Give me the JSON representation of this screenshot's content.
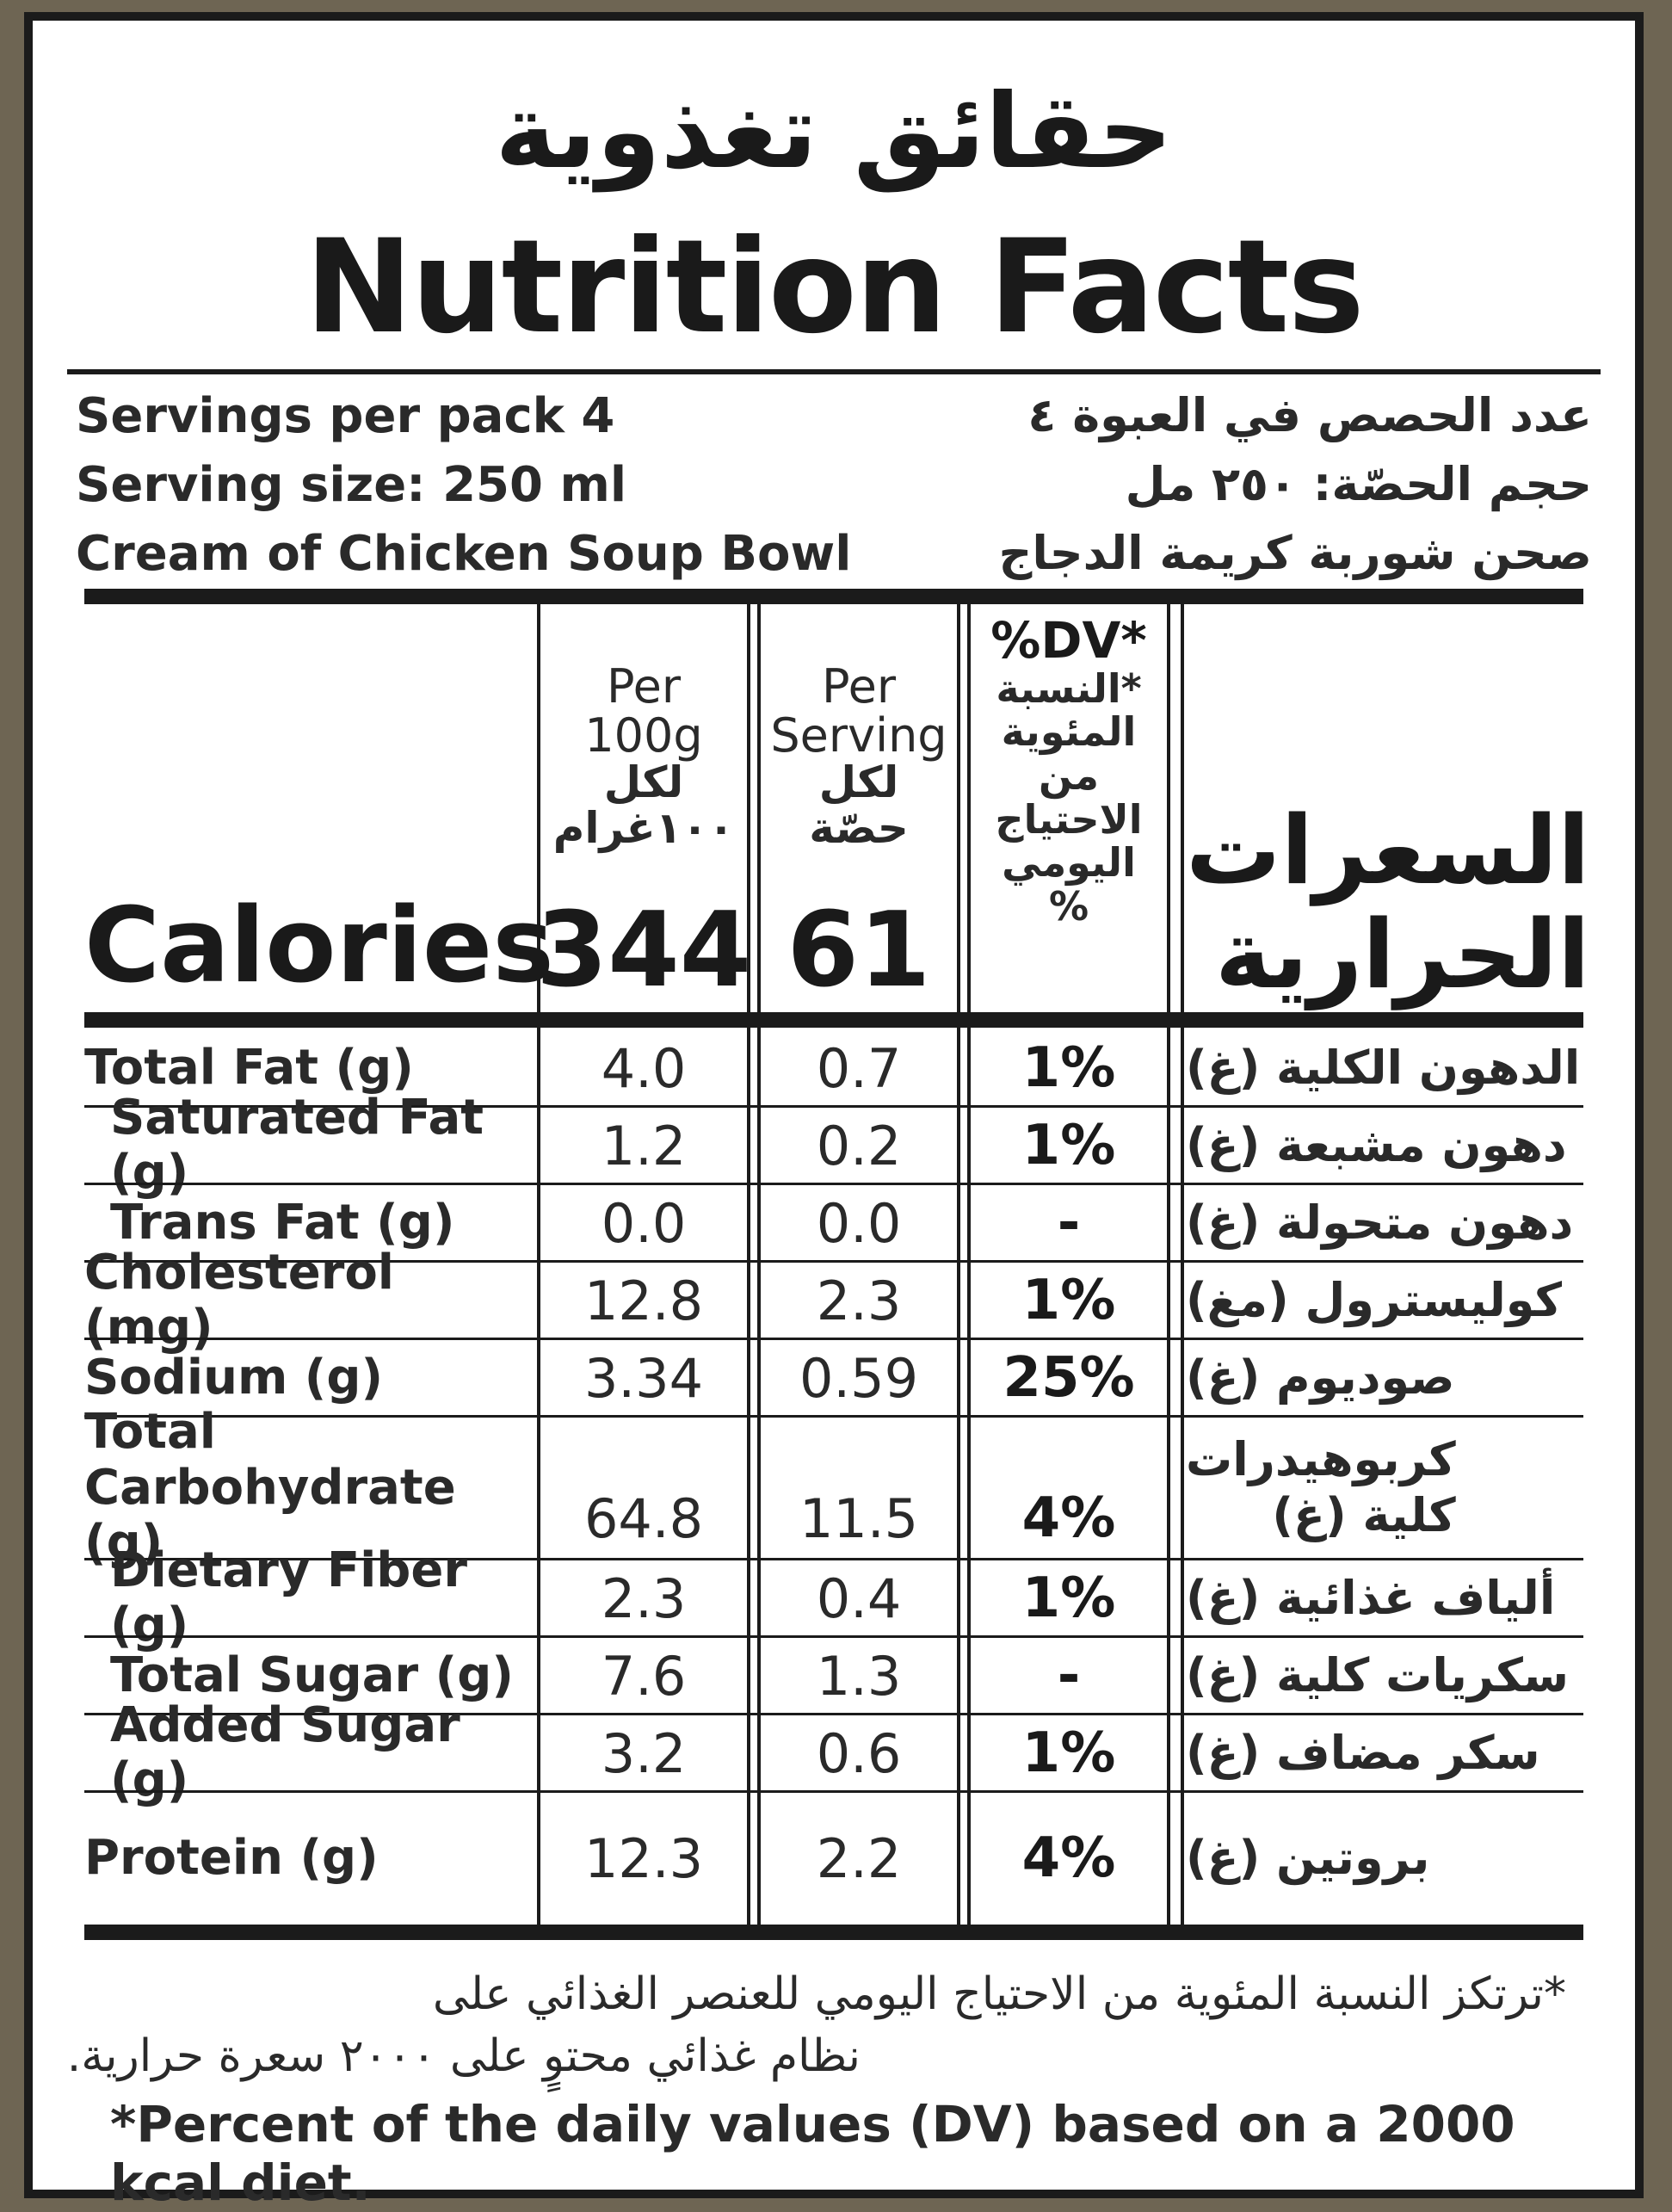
{
  "title": {
    "arabic": "حقائق تغذوية",
    "english": "Nutrition Facts"
  },
  "info": {
    "servings_en": "Servings per pack 4",
    "servings_ar": "عدد الحصص في العبوة ٤",
    "size_en": "Serving size: 250 ml",
    "size_ar": "حجم الحصّة: ٢٥٠ مل",
    "product_en": "Cream of Chicken Soup Bowl",
    "product_ar": "صحن شوربة كريمة الدجاج"
  },
  "headers": {
    "per100_en": "Per\n100g",
    "per100_ar": "لكل\n١٠٠غرام",
    "serving_en": "Per\nServing",
    "serving_ar": "لكل\nحصّة",
    "dv_en": "%DV*",
    "dv_ar": "*النسبة\nالمئوية\nمن\nالاحتياج\nاليومي\n%"
  },
  "calories": {
    "label_en": "Calories",
    "label_ar": "السعرات\nالحرارية",
    "per100": "344",
    "per_serving": "61"
  },
  "nutrients": [
    {
      "en": "Total Fat (g)",
      "ar": "الدهون الكلية (غ)",
      "per100": "4.0",
      "serving": "0.7",
      "dv": "1%"
    },
    {
      "en": "Saturated Fat (g)",
      "ar": "دهون مشبعة (غ)",
      "per100": "1.2",
      "serving": "0.2",
      "dv": "1%"
    },
    {
      "en": "Trans Fat (g)",
      "ar": "دهون متحولة (غ)",
      "per100": "0.0",
      "serving": "0.0",
      "dv": "-"
    },
    {
      "en": "Cholesterol (mg)",
      "ar": "كوليسترول (مغ)",
      "per100": "12.8",
      "serving": "2.3",
      "dv": "1%"
    },
    {
      "en": "Sodium (g)",
      "ar": "صوديوم (غ)",
      "per100": "3.34",
      "serving": "0.59",
      "dv": "25%"
    },
    {
      "en": "Total\nCarbohydrate (g)",
      "ar": "كربوهيدرات\nكلية (غ)",
      "per100": "64.8",
      "serving": "11.5",
      "dv": "4%"
    },
    {
      "en": "Dietary Fiber (g)",
      "ar": "ألياف غذائية (غ)",
      "per100": "2.3",
      "serving": "0.4",
      "dv": "1%"
    },
    {
      "en": "Total Sugar (g)",
      "ar": "سكريات كلية (غ)",
      "per100": "7.6",
      "serving": "1.3",
      "dv": "-"
    },
    {
      "en": "Added Sugar (g)",
      "ar": "سكر مضاف (غ)",
      "per100": "3.2",
      "serving": "0.6",
      "dv": "1%"
    },
    {
      "en": "Protein (g)",
      "ar": "بروتين (غ)",
      "per100": "12.3",
      "serving": "2.2",
      "dv": "4%"
    }
  ],
  "footnote": {
    "ar_line1": "*ترتكز النسبة المئوية من الاحتياج اليومي للعنصر الغذائي على",
    "ar_line2": "نظام غذائي محتوٍ على ٢٠٠٠ سعرة حرارية.",
    "en": "*Percent of the daily values (DV) based on a 2000 kcal diet."
  }
}
